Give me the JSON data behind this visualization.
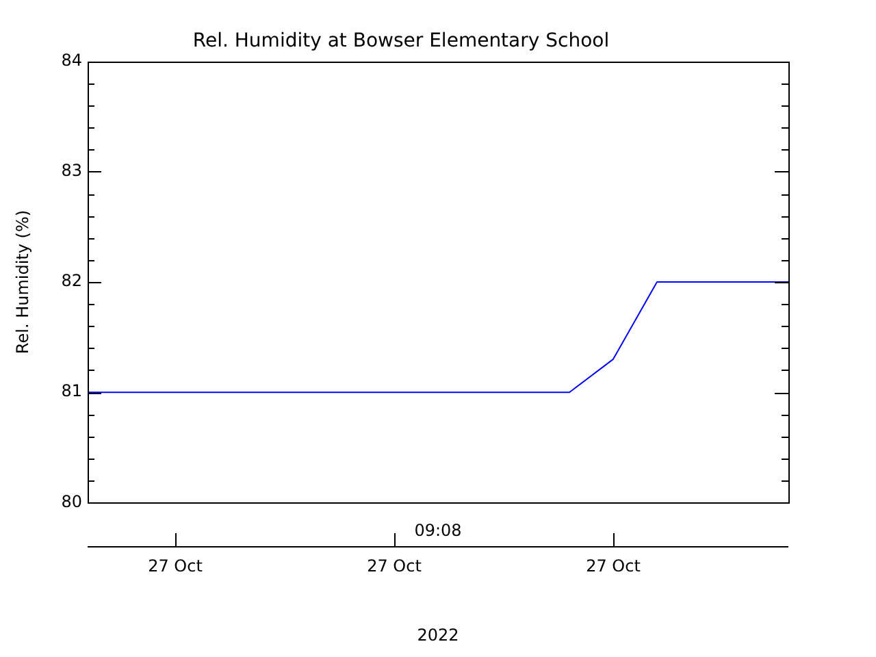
{
  "chart_data": {
    "type": "line",
    "title": "Rel. Humidity at Bowser Elementary School",
    "xlabel": "2022",
    "ylabel": "Rel. Humidity (%)",
    "categories": [
      null,
      null,
      "27 Oct",
      null,
      null,
      null,
      null,
      "27 Oct",
      null,
      null,
      null,
      null,
      "27 Oct",
      null,
      null,
      null,
      null
    ],
    "series": [
      {
        "color": "#0000ff",
        "values": [
          81,
          81,
          81,
          81,
          81,
          81,
          81,
          81,
          81,
          81,
          81,
          81,
          81.3,
          82,
          82,
          82,
          82
        ]
      }
    ],
    "ylim": [
      80,
      84
    ],
    "yticks": [
      80,
      81,
      82,
      83,
      84
    ],
    "annotations": [
      "09:08"
    ],
    "grid": false,
    "legend": false,
    "marker": "none",
    "line_style": "solid"
  }
}
